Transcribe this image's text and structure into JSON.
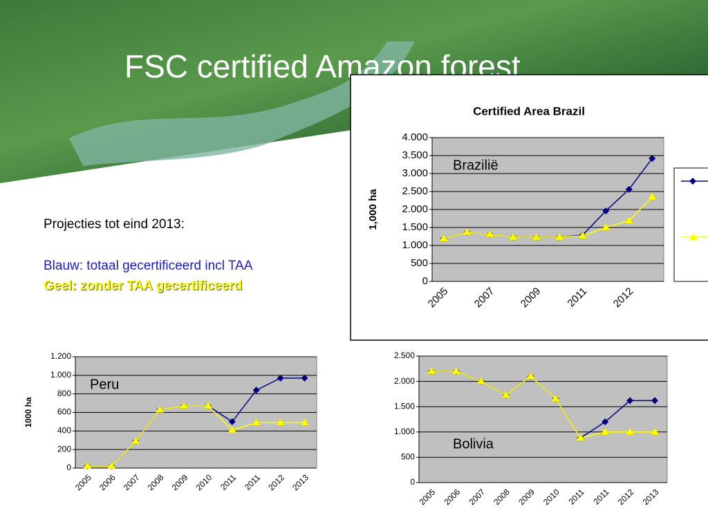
{
  "title": "FSC certified Amazon forest",
  "notes": [
    "Projecties tot eind 2013:",
    "Blauw: totaal gecertificeerd incl TAA",
    "Geel: zonder TAA gecertificeerd"
  ],
  "chart_data": [
    {
      "type": "line",
      "title": "Certified Area Brazil",
      "y_label": "1,000 ha",
      "annotation": "Brazilië",
      "categories": [
        "2005",
        null,
        "2007",
        null,
        "2009",
        null,
        "2011",
        null,
        "2012",
        null
      ],
      "series": [
        {
          "color": "#000080",
          "values": [
            1190,
            1365,
            1310,
            1230,
            1230,
            1230,
            1290,
            1960,
            2560,
            3420
          ]
        },
        {
          "color": "#ffff00",
          "values": [
            1190,
            1365,
            1310,
            1230,
            1230,
            1230,
            1270,
            1500,
            1690,
            2350
          ]
        }
      ],
      "ylim": [
        0,
        4000
      ],
      "yticks": [
        0,
        500,
        {
          "value": 1000,
          "label": "1.000"
        },
        {
          "value": 1500,
          "label": "1.500"
        },
        {
          "value": 2000,
          "label": "2.000"
        },
        {
          "value": 2500,
          "label": "2.500"
        },
        {
          "value": 3000,
          "label": "3.000"
        },
        {
          "value": 3500,
          "label": "3.500"
        },
        {
          "value": 4000,
          "label": "4.000"
        }
      ],
      "grid": true
    },
    {
      "type": "line",
      "y_label": "1000 ha",
      "annotation": "Peru",
      "categories": [
        "2005",
        "2006",
        "2007",
        "2008",
        "2009",
        "2010",
        "2011",
        "2011",
        "2012",
        "2013"
      ],
      "series": [
        {
          "color": "#000080",
          "values": [
            22,
            22,
            290,
            630,
            670,
            670,
            500,
            840,
            970,
            970
          ]
        },
        {
          "color": "#ffff00",
          "values": [
            22,
            22,
            290,
            630,
            670,
            670,
            410,
            490,
            490,
            490
          ]
        }
      ],
      "ylim": [
        0,
        1200
      ],
      "yticks": [
        0,
        200,
        400,
        600,
        800,
        {
          "value": 1000,
          "label": "1.000"
        },
        {
          "value": 1200,
          "label": "1.200"
        }
      ],
      "grid": true
    },
    {
      "type": "line",
      "annotation": "Bolivia",
      "categories": [
        "2005",
        "2006",
        "2007",
        "2008",
        "2009",
        "2010",
        "2011",
        "2011",
        "2012",
        "2013"
      ],
      "series": [
        {
          "color": "#000080",
          "values": [
            2200,
            2200,
            2000,
            1730,
            2100,
            1660,
            880,
            1200,
            1620,
            1620
          ]
        },
        {
          "color": "#ffff00",
          "values": [
            2200,
            2200,
            2000,
            1730,
            2100,
            1660,
            880,
            1000,
            1000,
            1000
          ]
        }
      ],
      "ylim": [
        0,
        2500
      ],
      "yticks": [
        0,
        500,
        {
          "value": 1000,
          "label": "1.000"
        },
        {
          "value": 1500,
          "label": "1.500"
        },
        {
          "value": 2000,
          "label": "2.000"
        },
        {
          "value": 2500,
          "label": "2.500"
        }
      ],
      "grid": true
    }
  ]
}
